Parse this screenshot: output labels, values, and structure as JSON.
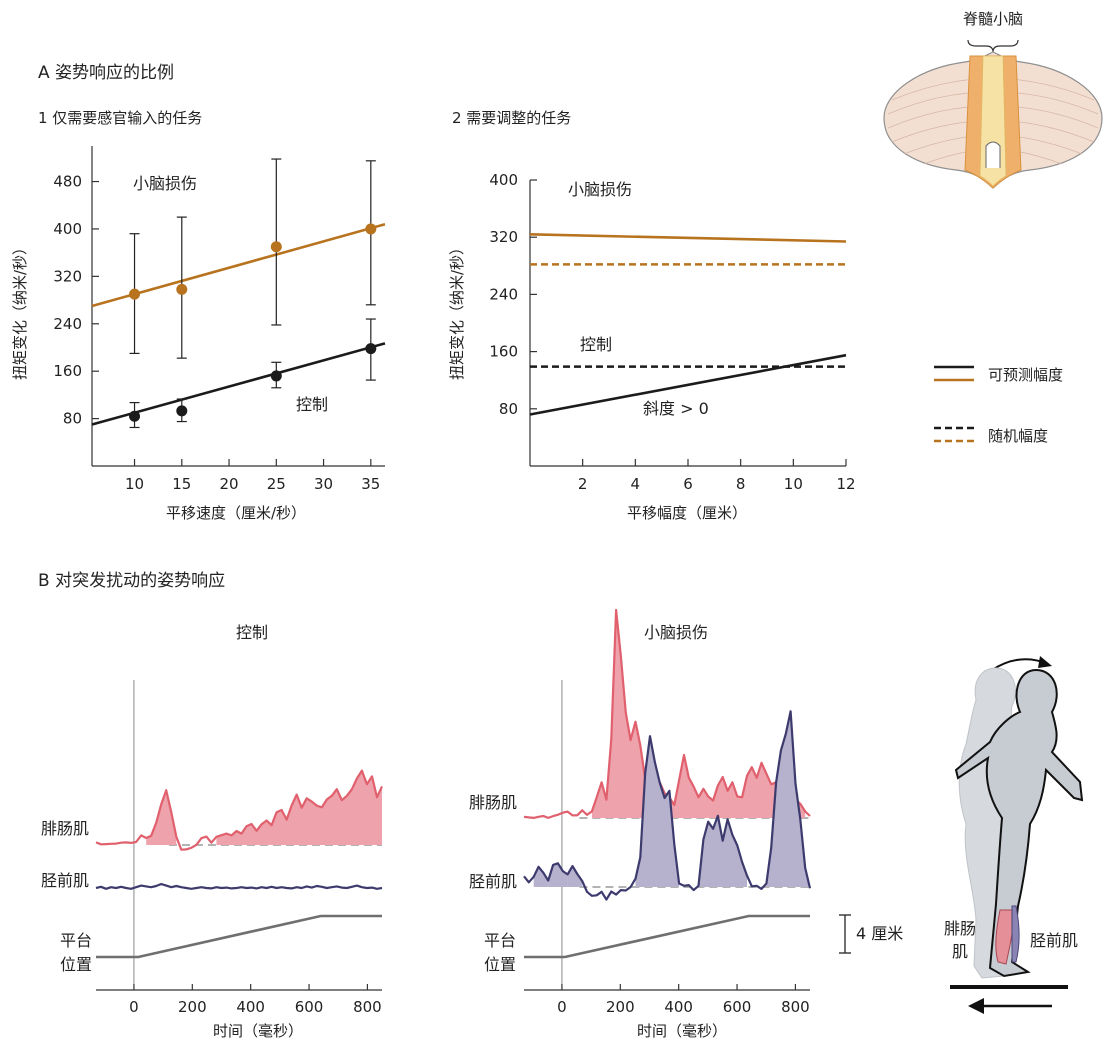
{
  "colors": {
    "lesion": "#b8731f",
    "control": "#1b1b1b",
    "emg_red": "#e0606e",
    "emg_red_fill": "#eea2ab",
    "emg_blue": "#3d3a6e",
    "emg_blue_fill": "#b6b1cc",
    "platform": "#6f6f6f",
    "baseline": "#9a9a9a"
  },
  "cerebellum": {
    "label": "脊髓小脑"
  },
  "section_a": {
    "title": "A  姿势响应的比例",
    "panel1_title": "1  仅需要感官输入的任务",
    "panel2_title": "2  需要调整的任务"
  },
  "legend": {
    "predictable": "可预测幅度",
    "random": "随机幅度"
  },
  "chart_data": [
    {
      "type": "scatter",
      "id": "A1",
      "title": "1  仅需要感官输入的任务",
      "xlabel": "平移速度（厘米/秒）",
      "ylabel": "扭矩变化（纳米/秒）",
      "xlim": [
        5.5,
        36.5
      ],
      "ylim": [
        0,
        540
      ],
      "xticks": [
        10,
        15,
        20,
        25,
        30,
        35
      ],
      "yticks": [
        80,
        160,
        240,
        320,
        400,
        480
      ],
      "series": [
        {
          "name": "小脑损伤",
          "x": [
            10,
            15,
            25,
            35
          ],
          "y": [
            290,
            298,
            370,
            400
          ],
          "err_low": [
            190,
            182,
            238,
            272
          ],
          "err_high": [
            392,
            420,
            518,
            515
          ],
          "fit": [
            [
              5.5,
              270
            ],
            [
              36.5,
              408
            ]
          ]
        },
        {
          "name": "控制",
          "x": [
            10,
            15,
            25,
            35
          ],
          "y": [
            84,
            93,
            152,
            198
          ],
          "err_low": [
            65,
            75,
            132,
            145
          ],
          "err_high": [
            107,
            113,
            175,
            248
          ],
          "fit": [
            [
              5.5,
              70
            ],
            [
              36.5,
              207
            ]
          ]
        }
      ]
    },
    {
      "type": "line",
      "id": "A2",
      "title": "2  需要调整的任务",
      "xlabel": "平移幅度（厘米）",
      "ylabel": "扭矩变化（纳米/秒）",
      "xlim": [
        0,
        12
      ],
      "ylim": [
        0,
        400
      ],
      "xticks": [
        2,
        4,
        6,
        8,
        10,
        12
      ],
      "yticks": [
        80,
        160,
        240,
        320,
        400
      ],
      "series": [
        {
          "name": "小脑损伤",
          "style": "solid",
          "points": [
            [
              0,
              324
            ],
            [
              12,
              314
            ]
          ]
        },
        {
          "name": "小脑损伤",
          "style": "dashed",
          "points": [
            [
              0,
              282
            ],
            [
              12,
              282
            ]
          ]
        },
        {
          "name": "控制",
          "style": "dashed",
          "points": [
            [
              0,
              139
            ],
            [
              12,
              139
            ]
          ]
        },
        {
          "name": "控制",
          "style": "solid",
          "points": [
            [
              0,
              72
            ],
            [
              12,
              155
            ]
          ]
        }
      ],
      "annotation": "斜度 > 0"
    },
    {
      "type": "line",
      "id": "B-control",
      "title": "控制",
      "xlabel": "时间（毫秒）",
      "xlim": [
        -130,
        850
      ],
      "xticks": [
        0,
        200,
        400,
        600,
        800
      ],
      "onset_ms": 15,
      "platform": [
        [
          -130,
          0
        ],
        [
          15,
          0
        ],
        [
          640,
          1
        ],
        [
          850,
          1
        ]
      ],
      "series": [
        {
          "name": "腓肠肌",
          "values": [
            0.02,
            0.01,
            0.03,
            0.0,
            0.02,
            0.05,
            0.02,
            0.03,
            0.06,
            0.12,
            0.1,
            0.15,
            0.3,
            0.58,
            0.8,
            0.45,
            0.12,
            -0.05,
            -0.08,
            -0.04,
            0.02,
            0.08,
            0.12,
            0.05,
            0.1,
            0.14,
            0.18,
            0.12,
            0.2,
            0.18,
            0.25,
            0.3,
            0.22,
            0.28,
            0.35,
            0.3,
            0.45,
            0.5,
            0.38,
            0.55,
            0.72,
            0.55,
            0.65,
            0.62,
            0.58,
            0.52,
            0.65,
            0.72,
            0.78,
            0.64,
            0.72,
            0.78,
            0.95,
            1.08,
            0.85,
            0.98,
            0.7,
            0.82
          ]
        },
        {
          "name": "胫前肌",
          "values": [
            0.0,
            0.03,
            -0.02,
            0.02,
            0.0,
            0.03,
            0.0,
            -0.02,
            0.02,
            0.06,
            0.04,
            0.02,
            0.05,
            0.1,
            0.06,
            0.02,
            0.05,
            0.02,
            0.0,
            -0.02,
            0.0,
            0.02,
            0.0,
            -0.01,
            0.02,
            0.0,
            0.01,
            -0.01,
            0.0,
            0.02,
            0.0,
            0.01,
            -0.01,
            0.02,
            0.0,
            0.03,
            0.0,
            0.02,
            0.0,
            -0.01,
            0.02,
            0.0,
            0.04,
            0.01,
            0.05,
            0.03,
            0.0,
            0.02,
            0.04,
            0.01,
            0.0,
            0.03,
            0.06,
            0.02,
            0.0,
            0.01,
            -0.02,
            0.0
          ]
        }
      ]
    },
    {
      "type": "line",
      "id": "B-lesion",
      "title": "小脑损伤",
      "xlabel": "时间（毫秒）",
      "xlim": [
        -130,
        850
      ],
      "xticks": [
        0,
        200,
        400,
        600,
        800
      ],
      "onset_ms": 10,
      "platform": [
        [
          -130,
          0
        ],
        [
          10,
          0
        ],
        [
          640,
          1
        ],
        [
          850,
          1
        ]
      ],
      "series": [
        {
          "name": "腓肠肌",
          "values": [
            0.0,
            0.01,
            0.02,
            0.0,
            0.03,
            0.02,
            0.01,
            0.05,
            0.1,
            0.08,
            0.04,
            0.06,
            0.1,
            0.05,
            0.12,
            0.3,
            0.55,
            0.3,
            1.2,
            3.2,
            2.5,
            1.6,
            1.2,
            1.5,
            1.1,
            0.6,
            0.45,
            0.5,
            0.55,
            0.4,
            0.3,
            0.2,
            0.6,
            0.95,
            0.62,
            0.5,
            0.3,
            0.45,
            0.35,
            0.25,
            0.5,
            0.65,
            0.4,
            0.55,
            0.35,
            0.3,
            0.65,
            0.8,
            0.6,
            0.85,
            0.7,
            0.5,
            0.55,
            0.45,
            0.35,
            0.4,
            0.3,
            0.2,
            0.1,
            0.05
          ]
        },
        {
          "name": "胫前肌",
          "values": [
            0.1,
            0.05,
            0.12,
            0.2,
            0.15,
            0.08,
            0.22,
            0.25,
            0.18,
            0.12,
            0.22,
            0.15,
            0.05,
            -0.05,
            -0.08,
            -0.1,
            -0.05,
            -0.12,
            -0.06,
            -0.08,
            -0.02,
            -0.05,
            0.0,
            0.1,
            0.3,
            1.2,
            1.6,
            1.3,
            1.1,
            0.95,
            1.0,
            0.45,
            0.05,
            0.0,
            0.02,
            -0.02,
            0.0,
            0.5,
            0.7,
            0.6,
            0.75,
            0.5,
            0.7,
            0.55,
            0.45,
            0.25,
            0.12,
            0.02,
            0.0,
            -0.02,
            0.05,
            0.4,
            1.1,
            1.45,
            1.6,
            1.85,
            1.1,
            0.7,
            0.2,
            0.0
          ]
        }
      ]
    }
  ],
  "section_b": {
    "title": "B  对突发扰动的姿势响应",
    "control_title": "控制",
    "lesion_title": "小脑损伤",
    "label_gastrocnemius": "腓肠肌",
    "label_tibialis": "胫前肌",
    "label_platform_1": "平台",
    "label_platform_2": "位置",
    "xlabel": "时间（毫秒）",
    "scale_bar": "4 厘米"
  },
  "figure": {
    "label_gastrocnemius_1": "腓肠",
    "label_gastrocnemius_2": "肌",
    "label_tibialis": "胫前肌"
  }
}
